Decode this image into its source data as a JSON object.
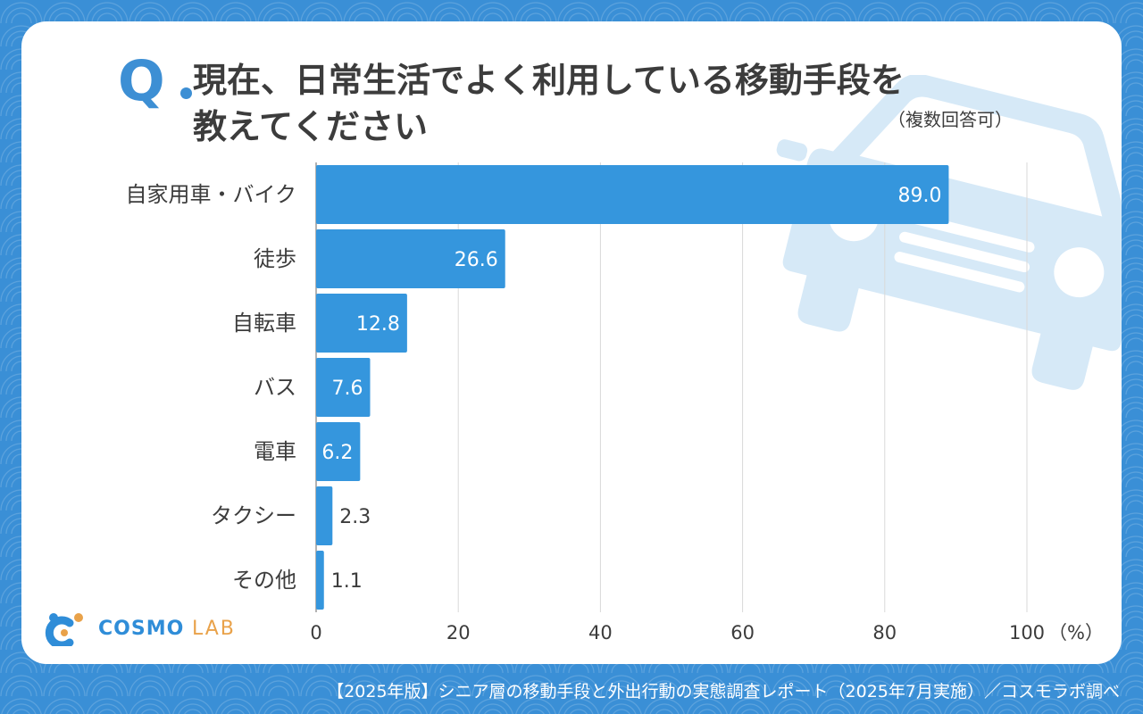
{
  "question": {
    "mark": "Q",
    "title_line1": "現在、日常生活でよく利用している移動手段を",
    "title_line2": "教えてください",
    "note": "（複数回答可）"
  },
  "chart_data": {
    "type": "bar",
    "orientation": "horizontal",
    "categories": [
      "自家用車・バイク",
      "徒歩",
      "自転車",
      "バス",
      "電車",
      "タクシー",
      "その他"
    ],
    "values": [
      89.0,
      26.6,
      12.8,
      7.6,
      6.2,
      2.3,
      1.1
    ],
    "value_labels": [
      "89.0",
      "26.6",
      "12.8",
      "7.6",
      "6.2",
      "2.3",
      "1.1"
    ],
    "xlim": [
      0,
      100
    ],
    "xticks": [
      0,
      20,
      40,
      60,
      80,
      100
    ],
    "xtick_labels": [
      "0",
      "20",
      "40",
      "60",
      "80",
      "100"
    ],
    "unit_label": "（%）",
    "bar_color": "#3596dd",
    "grid": true
  },
  "logo": {
    "word": "COSMO",
    "suffix": "LAB"
  },
  "footer": "【2025年版】シニア層の移動手段と外出行動の実態調査レポート（2025年7月実施）／コスモラボ調べ",
  "colors": {
    "background": "#3a8fd6",
    "accent": "#3d8fd4",
    "logo_orange": "#e9a24a"
  }
}
